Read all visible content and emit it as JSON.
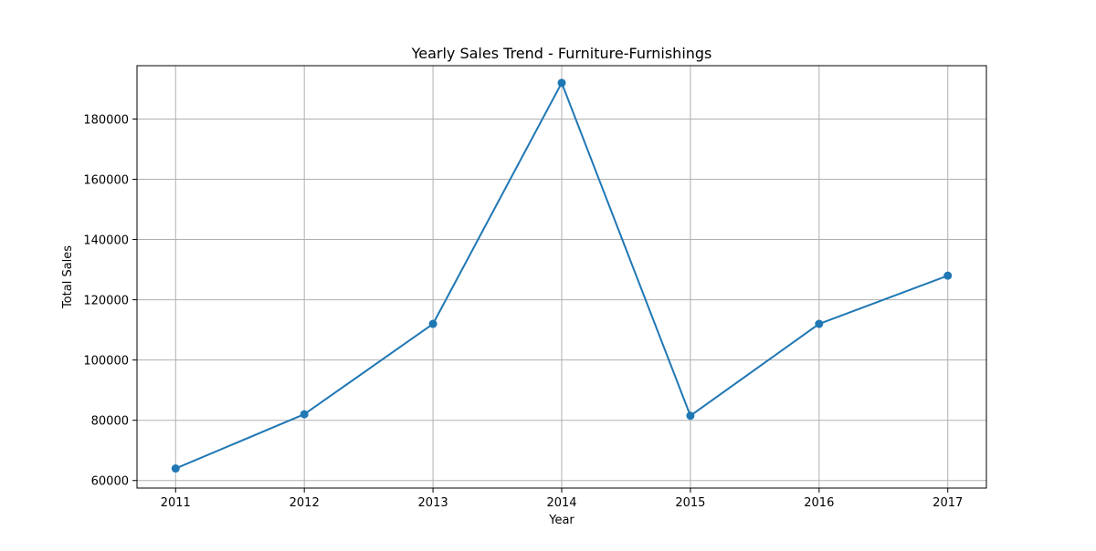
{
  "chart_data": {
    "type": "line",
    "title": "Yearly Sales Trend - Furniture-Furnishings",
    "xlabel": "Year",
    "ylabel": "Total Sales",
    "x": [
      2011,
      2012,
      2013,
      2014,
      2015,
      2016,
      2017
    ],
    "series": [
      {
        "name": "",
        "values": [
          64000,
          82000,
          112000,
          192000,
          81500,
          112000,
          128000
        ]
      }
    ],
    "xlim": [
      2010.7,
      2017.3
    ],
    "ylim": [
      57500,
      197700
    ],
    "xticks": [
      2011,
      2012,
      2013,
      2014,
      2015,
      2016,
      2017
    ],
    "yticks": [
      60000,
      80000,
      100000,
      120000,
      140000,
      160000,
      180000
    ],
    "grid": true,
    "marker": "circle",
    "line_color": "#1f77b4"
  }
}
